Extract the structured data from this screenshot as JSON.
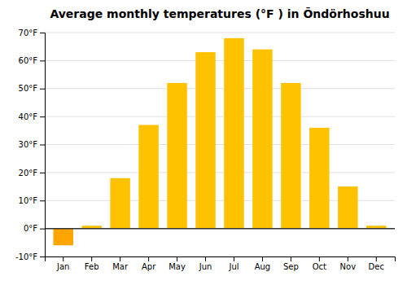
{
  "chart_data": {
    "type": "bar",
    "title": "Average monthly temperatures (°F ) in Ōndörhoshuu",
    "categories": [
      "Jan",
      "Feb",
      "Mar",
      "Apr",
      "May",
      "Jun",
      "Jul",
      "Aug",
      "Sep",
      "Oct",
      "Nov",
      "Dec"
    ],
    "values": [
      -6,
      1,
      18,
      37,
      52,
      63,
      68,
      64,
      52,
      36,
      15,
      1
    ],
    "colors": [
      "#FFA500",
      "#FFC200",
      "#FFC200",
      "#FFC200",
      "#FFC200",
      "#FFC200",
      "#FFC200",
      "#FFC200",
      "#FFC200",
      "#FFC200",
      "#FFC200",
      "#FFC200"
    ],
    "ylim": [
      -10,
      70
    ],
    "yticks": [
      {
        "value": -10,
        "label": "-10°F"
      },
      {
        "value": 0,
        "label": "0°F"
      },
      {
        "value": 10,
        "label": "10°F"
      },
      {
        "value": 20,
        "label": "20°F"
      },
      {
        "value": 30,
        "label": "30°F"
      },
      {
        "value": 40,
        "label": "40°F"
      },
      {
        "value": 50,
        "label": "50°F"
      },
      {
        "value": 60,
        "label": "60°F"
      },
      {
        "value": 70,
        "label": "70°F"
      }
    ],
    "grid": true
  }
}
